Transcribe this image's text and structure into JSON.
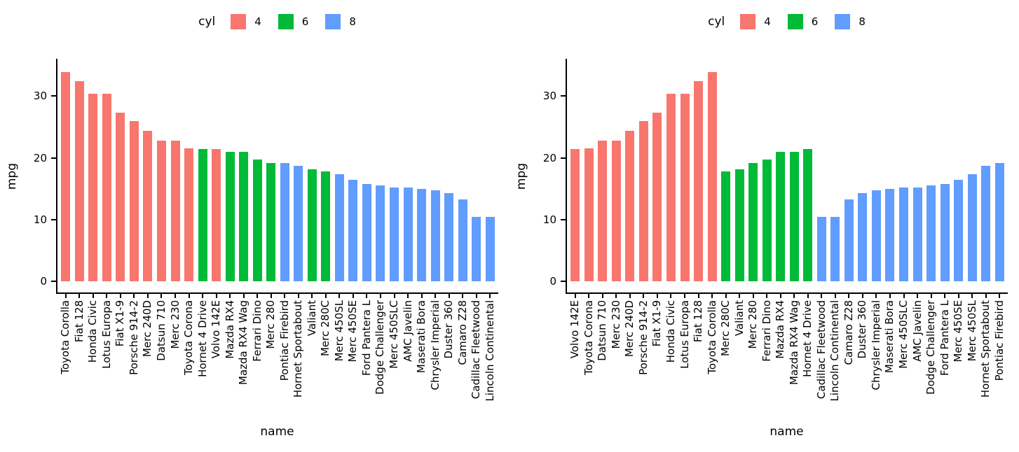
{
  "palette": {
    "4": "#F8766D",
    "6": "#00BA38",
    "8": "#619CFF"
  },
  "colors": {
    "axis": "#000000",
    "text": "#000000",
    "background": "#FFFFFF"
  },
  "chart_data": [
    {
      "type": "bar",
      "title": "",
      "xlabel": "name",
      "ylabel": "mpg",
      "yticks": [
        0,
        10,
        20,
        30
      ],
      "ylim": [
        0,
        35.6
      ],
      "grid": false,
      "sort": "mpg descending",
      "legend": {
        "title": "cyl",
        "entries": [
          "4",
          "6",
          "8"
        ],
        "position": "top"
      },
      "bars": [
        {
          "name": "Toyota Corolla",
          "mpg": 33.9,
          "cyl": 4
        },
        {
          "name": "Fiat 128",
          "mpg": 32.4,
          "cyl": 4
        },
        {
          "name": "Honda Civic",
          "mpg": 30.4,
          "cyl": 4
        },
        {
          "name": "Lotus Europa",
          "mpg": 30.4,
          "cyl": 4
        },
        {
          "name": "Fiat X1-9",
          "mpg": 27.3,
          "cyl": 4
        },
        {
          "name": "Porsche 914-2",
          "mpg": 26.0,
          "cyl": 4
        },
        {
          "name": "Merc 240D",
          "mpg": 24.4,
          "cyl": 4
        },
        {
          "name": "Datsun 710",
          "mpg": 22.8,
          "cyl": 4
        },
        {
          "name": "Merc 230",
          "mpg": 22.8,
          "cyl": 4
        },
        {
          "name": "Toyota Corona",
          "mpg": 21.5,
          "cyl": 4
        },
        {
          "name": "Hornet 4 Drive",
          "mpg": 21.4,
          "cyl": 6
        },
        {
          "name": "Volvo 142E",
          "mpg": 21.4,
          "cyl": 4
        },
        {
          "name": "Mazda RX4",
          "mpg": 21.0,
          "cyl": 6
        },
        {
          "name": "Mazda RX4 Wag",
          "mpg": 21.0,
          "cyl": 6
        },
        {
          "name": "Ferrari Dino",
          "mpg": 19.7,
          "cyl": 6
        },
        {
          "name": "Merc 280",
          "mpg": 19.2,
          "cyl": 6
        },
        {
          "name": "Pontiac Firebird",
          "mpg": 19.2,
          "cyl": 8
        },
        {
          "name": "Hornet Sportabout",
          "mpg": 18.7,
          "cyl": 8
        },
        {
          "name": "Valiant",
          "mpg": 18.1,
          "cyl": 6
        },
        {
          "name": "Merc 280C",
          "mpg": 17.8,
          "cyl": 6
        },
        {
          "name": "Merc 450SL",
          "mpg": 17.3,
          "cyl": 8
        },
        {
          "name": "Merc 450SE",
          "mpg": 16.4,
          "cyl": 8
        },
        {
          "name": "Ford Pantera L",
          "mpg": 15.8,
          "cyl": 8
        },
        {
          "name": "Dodge Challenger",
          "mpg": 15.5,
          "cyl": 8
        },
        {
          "name": "Merc 450SLC",
          "mpg": 15.2,
          "cyl": 8
        },
        {
          "name": "AMC Javelin",
          "mpg": 15.2,
          "cyl": 8
        },
        {
          "name": "Maserati Bora",
          "mpg": 15.0,
          "cyl": 8
        },
        {
          "name": "Chrysler Imperial",
          "mpg": 14.7,
          "cyl": 8
        },
        {
          "name": "Duster 360",
          "mpg": 14.3,
          "cyl": 8
        },
        {
          "name": "Camaro Z28",
          "mpg": 13.3,
          "cyl": 8
        },
        {
          "name": "Cadillac Fleetwood",
          "mpg": 10.4,
          "cyl": 8
        },
        {
          "name": "Lincoln Continental",
          "mpg": 10.4,
          "cyl": 8
        }
      ]
    },
    {
      "type": "bar",
      "title": "",
      "xlabel": "name",
      "ylabel": "mpg",
      "yticks": [
        0,
        10,
        20,
        30
      ],
      "ylim": [
        0,
        35.6
      ],
      "grid": false,
      "sort": "cyl group then mpg ascending",
      "legend": {
        "title": "cyl",
        "entries": [
          "4",
          "6",
          "8"
        ],
        "position": "top"
      },
      "bars": [
        {
          "name": "Volvo 142E",
          "mpg": 21.4,
          "cyl": 4
        },
        {
          "name": "Toyota Corona",
          "mpg": 21.5,
          "cyl": 4
        },
        {
          "name": "Datsun 710",
          "mpg": 22.8,
          "cyl": 4
        },
        {
          "name": "Merc 230",
          "mpg": 22.8,
          "cyl": 4
        },
        {
          "name": "Merc 240D",
          "mpg": 24.4,
          "cyl": 4
        },
        {
          "name": "Porsche 914-2",
          "mpg": 26.0,
          "cyl": 4
        },
        {
          "name": "Fiat X1-9",
          "mpg": 27.3,
          "cyl": 4
        },
        {
          "name": "Honda Civic",
          "mpg": 30.4,
          "cyl": 4
        },
        {
          "name": "Lotus Europa",
          "mpg": 30.4,
          "cyl": 4
        },
        {
          "name": "Fiat 128",
          "mpg": 32.4,
          "cyl": 4
        },
        {
          "name": "Toyota Corolla",
          "mpg": 33.9,
          "cyl": 4
        },
        {
          "name": "Merc 280C",
          "mpg": 17.8,
          "cyl": 6
        },
        {
          "name": "Valiant",
          "mpg": 18.1,
          "cyl": 6
        },
        {
          "name": "Merc 280",
          "mpg": 19.2,
          "cyl": 6
        },
        {
          "name": "Ferrari Dino",
          "mpg": 19.7,
          "cyl": 6
        },
        {
          "name": "Mazda RX4",
          "mpg": 21.0,
          "cyl": 6
        },
        {
          "name": "Mazda RX4 Wag",
          "mpg": 21.0,
          "cyl": 6
        },
        {
          "name": "Hornet 4 Drive",
          "mpg": 21.4,
          "cyl": 6
        },
        {
          "name": "Cadillac Fleetwood",
          "mpg": 10.4,
          "cyl": 8
        },
        {
          "name": "Lincoln Continental",
          "mpg": 10.4,
          "cyl": 8
        },
        {
          "name": "Camaro Z28",
          "mpg": 13.3,
          "cyl": 8
        },
        {
          "name": "Duster 360",
          "mpg": 14.3,
          "cyl": 8
        },
        {
          "name": "Chrysler Imperial",
          "mpg": 14.7,
          "cyl": 8
        },
        {
          "name": "Maserati Bora",
          "mpg": 15.0,
          "cyl": 8
        },
        {
          "name": "Merc 450SLC",
          "mpg": 15.2,
          "cyl": 8
        },
        {
          "name": "AMC Javelin",
          "mpg": 15.2,
          "cyl": 8
        },
        {
          "name": "Dodge Challenger",
          "mpg": 15.5,
          "cyl": 8
        },
        {
          "name": "Ford Pantera L",
          "mpg": 15.8,
          "cyl": 8
        },
        {
          "name": "Merc 450SE",
          "mpg": 16.4,
          "cyl": 8
        },
        {
          "name": "Merc 450SL",
          "mpg": 17.3,
          "cyl": 8
        },
        {
          "name": "Hornet Sportabout",
          "mpg": 18.7,
          "cyl": 8
        },
        {
          "name": "Pontiac Firebird",
          "mpg": 19.2,
          "cyl": 8
        }
      ]
    }
  ]
}
